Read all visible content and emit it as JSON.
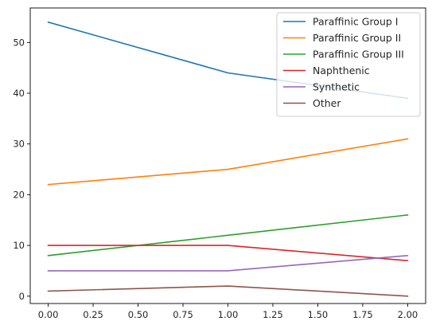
{
  "chart_data": {
    "type": "line",
    "title": "",
    "xlabel": "",
    "ylabel": "",
    "x": [
      0,
      1,
      2
    ],
    "xlim": [
      -0.1,
      2.1
    ],
    "ylim": [
      -1.45,
      56.8
    ],
    "xticks": [
      "0.00",
      "0.25",
      "0.50",
      "0.75",
      "1.00",
      "1.25",
      "1.50",
      "1.75",
      "2.00"
    ],
    "yticks": [
      "0",
      "10",
      "20",
      "30",
      "40",
      "50"
    ],
    "grid": false,
    "legend_position": "top-right",
    "series": [
      {
        "name": "Paraffinic Group I",
        "values": [
          54,
          44,
          39
        ],
        "color": "#1f77b4"
      },
      {
        "name": "Paraffinic Group II",
        "values": [
          22,
          25,
          31
        ],
        "color": "#ff7f0e"
      },
      {
        "name": "Paraffinic Group III",
        "values": [
          8,
          12,
          16
        ],
        "color": "#2ca02c"
      },
      {
        "name": "Naphthenic",
        "values": [
          10,
          10,
          7
        ],
        "color": "#d62728"
      },
      {
        "name": "Synthetic",
        "values": [
          5,
          5,
          8
        ],
        "color": "#9467bd"
      },
      {
        "name": "Other",
        "values": [
          1,
          2,
          0
        ],
        "color": "#8c564b"
      }
    ]
  }
}
